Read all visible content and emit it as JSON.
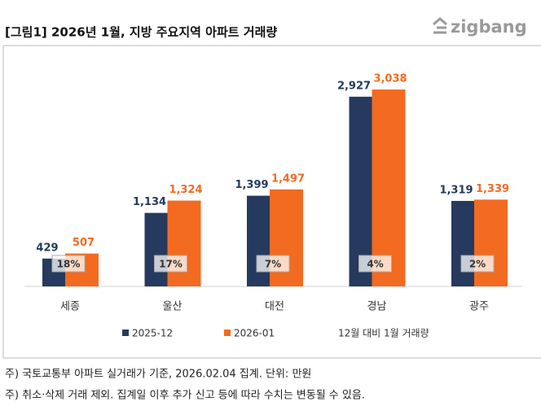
{
  "chart_data": {
    "type": "bar",
    "title": "[그림1] 2026년 1월, 지방 주요지역 아파트 거래량",
    "logo": "zigbang",
    "categories": [
      "세종",
      "울산",
      "대전",
      "경남",
      "광주"
    ],
    "series": [
      {
        "name": "2025-12",
        "color": "#253a5e",
        "values": [
          429,
          1134,
          1399,
          2927,
          1319
        ],
        "value_labels": [
          "429",
          "1,134",
          "1,399",
          "2,927",
          "1,319"
        ]
      },
      {
        "name": "2026-01",
        "color": "#f26b21",
        "values": [
          507,
          1324,
          1497,
          3038,
          1339
        ],
        "value_labels": [
          "507",
          "1,324",
          "1,497",
          "3,038",
          "1,339"
        ]
      }
    ],
    "change": {
      "name": "12월 대비 1월 거래량",
      "values": [
        18,
        17,
        7,
        4,
        2
      ],
      "value_labels": [
        "18%",
        "17%",
        "7%",
        "4%",
        "2%"
      ]
    },
    "notes": [
      "주) 국토교통부 아파트 실거래가 기준, 2026.02.04 집계. 단위: 만원",
      "주) 취소·삭제 거래 제외. 집계일 이후 추가 신고 등에 따라 수치는 변동될 수 있음."
    ]
  }
}
